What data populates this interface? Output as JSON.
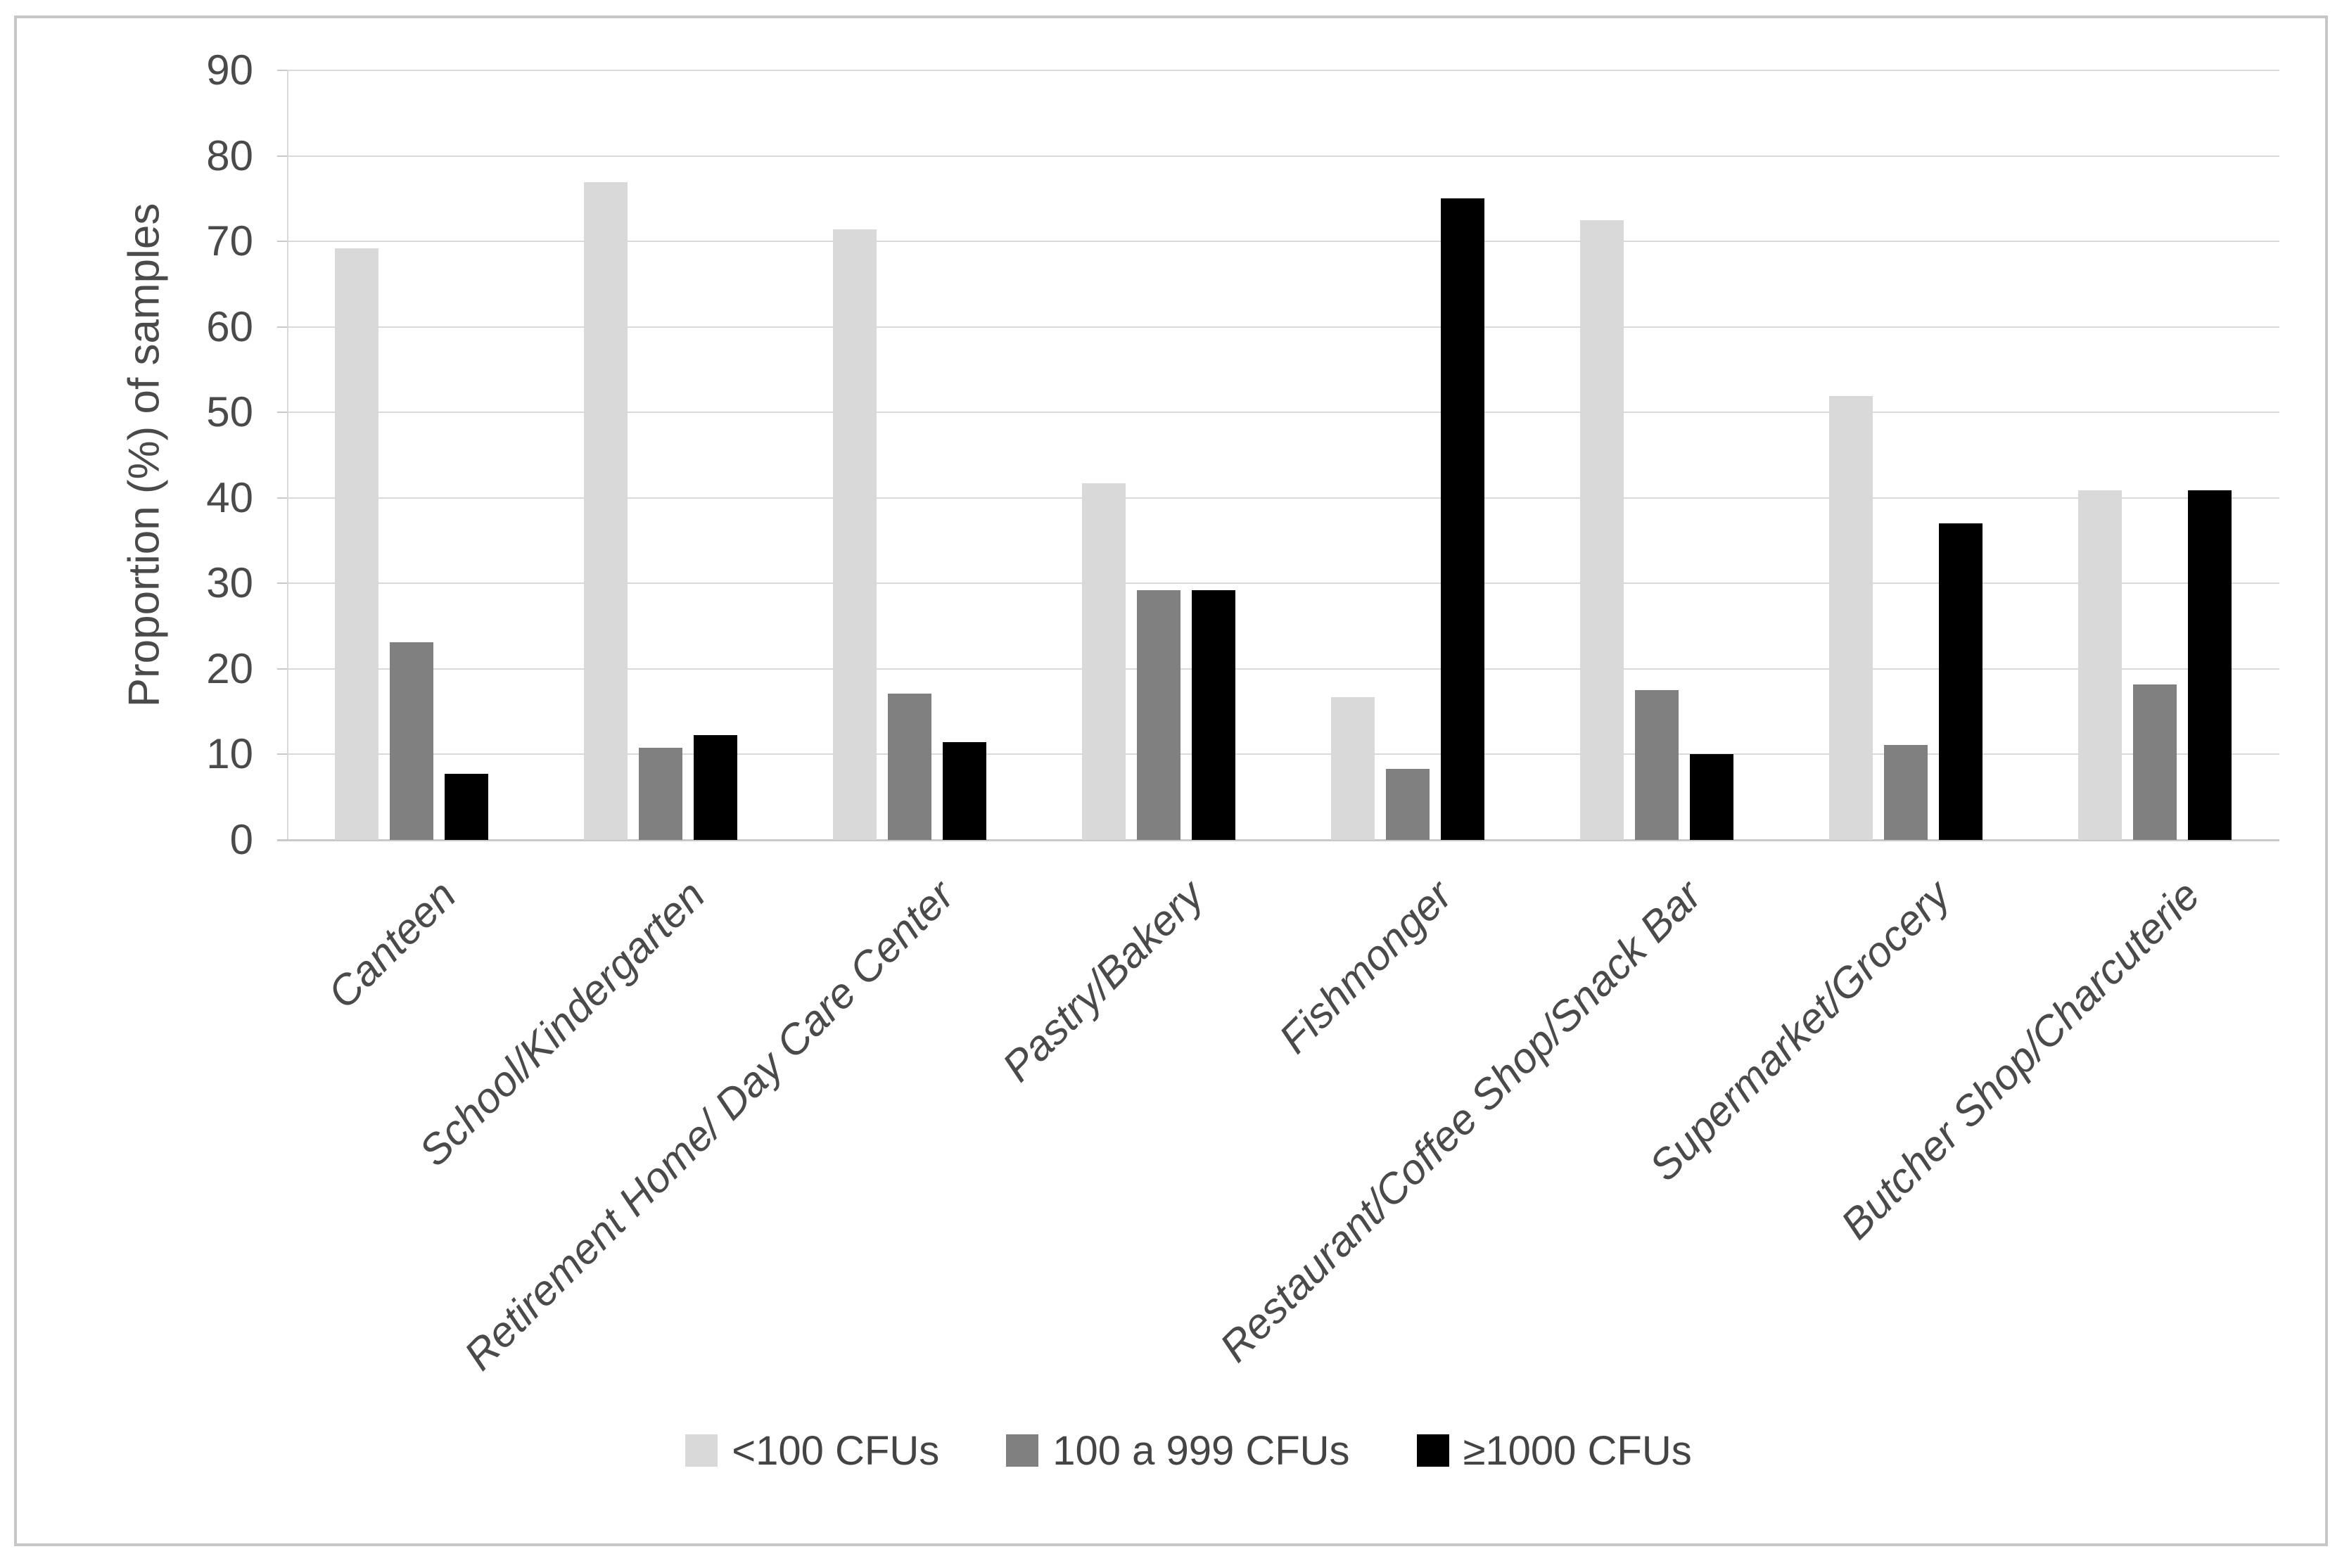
{
  "chart_data": {
    "type": "bar",
    "title": "",
    "xlabel": "",
    "ylabel": "Proportion (%) of samples",
    "ylim": [
      0,
      90
    ],
    "ytick_step": 10,
    "ytick_labels": [
      "0",
      "10",
      "20",
      "30",
      "40",
      "50",
      "60",
      "70",
      "80",
      "90"
    ],
    "grid": "horizontal",
    "legend_position": "bottom-center",
    "categories": [
      "Canteen",
      "School/Kindergarten",
      "Retirement Home/ Day Care Center",
      "Pastry/Bakery",
      "Fishmonger",
      "Restaurant/Coffee Shop/Snack Bar",
      "Supermarket/Grocery",
      "Butcher Shop/Charcuterie"
    ],
    "series": [
      {
        "name": "<100 CFUs",
        "color": "#d9d9d9",
        "values": [
          69.2,
          76.9,
          71.4,
          41.7,
          16.7,
          72.5,
          51.9,
          40.9
        ]
      },
      {
        "name": "100 a 999 CFUs",
        "color": "#808080",
        "values": [
          23.1,
          10.8,
          17.1,
          29.2,
          8.3,
          17.5,
          11.1,
          18.2
        ]
      },
      {
        "name": "≥1000 CFUs",
        "color": "#000000",
        "values": [
          7.7,
          12.3,
          11.4,
          29.2,
          75.0,
          10.0,
          37.0,
          40.9
        ]
      }
    ]
  },
  "colors": {
    "gridline": "#d9d9d9",
    "axis_line": "#c9c9c9",
    "text": "#4a4a4a",
    "figure_border": "#c7c7c7",
    "background": "#ffffff"
  }
}
